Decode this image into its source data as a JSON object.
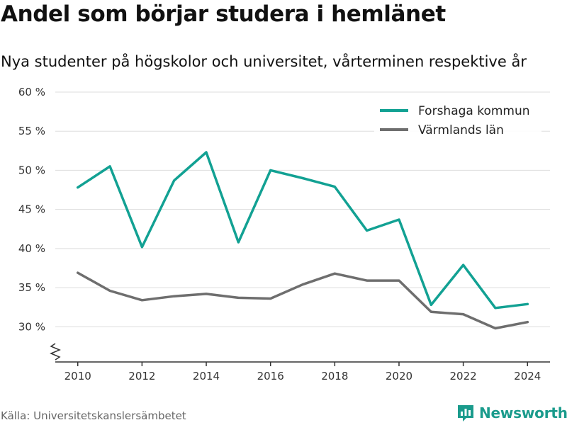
{
  "header": {
    "title": "Andel som börjar studera i hemlänet",
    "subtitle": "Nya studenter på högskolor och universitet, vårterminen respektive år"
  },
  "footer": {
    "source": "Källa: Universitetskanslersämbetet",
    "brand": "Newsworthy",
    "brand_icon": "newsworthy-logo-icon"
  },
  "colors": {
    "forshaga": "#12a193",
    "varmland": "#6e6e6e",
    "grid": "#dddddd",
    "axis": "#333333",
    "brand": "#1a9b8c"
  },
  "chart_data": {
    "type": "line",
    "title": "Andel som börjar studera i hemlänet",
    "subtitle": "Nya studenter på högskolor och universitet, vårterminen respektive år",
    "x": [
      2010,
      2011,
      2012,
      2013,
      2014,
      2015,
      2016,
      2017,
      2018,
      2019,
      2020,
      2021,
      2022,
      2023,
      2024
    ],
    "series": [
      {
        "name": "Forshaga kommun",
        "color": "#12a193",
        "values": [
          47.8,
          50.5,
          40.2,
          48.7,
          52.3,
          40.8,
          50.0,
          49.0,
          47.9,
          42.3,
          43.7,
          32.8,
          37.9,
          32.4,
          32.9
        ]
      },
      {
        "name": "Värmlands län",
        "color": "#6e6e6e",
        "values": [
          36.9,
          34.6,
          33.4,
          33.9,
          34.2,
          33.7,
          33.6,
          35.4,
          36.8,
          35.9,
          35.9,
          31.9,
          31.6,
          29.8,
          30.6
        ]
      }
    ],
    "xticks": [
      2010,
      2012,
      2014,
      2016,
      2018,
      2020,
      2022,
      2024
    ],
    "xtick_labels": [
      "2010",
      "2012",
      "2014",
      "2016",
      "2018",
      "2020",
      "2022",
      "2024"
    ],
    "yticks": [
      30,
      35,
      40,
      45,
      50,
      55,
      60
    ],
    "ytick_labels": [
      "30 %",
      "35 %",
      "40 %",
      "45 %",
      "50 %",
      "55 %",
      "60 %"
    ],
    "xlim": [
      2009.3,
      2024.7
    ],
    "ylim": [
      25.5,
      60
    ],
    "y_axis_break": true,
    "grid": "horizontal",
    "legend_position": "top-right",
    "xlabel": "",
    "ylabel": ""
  }
}
